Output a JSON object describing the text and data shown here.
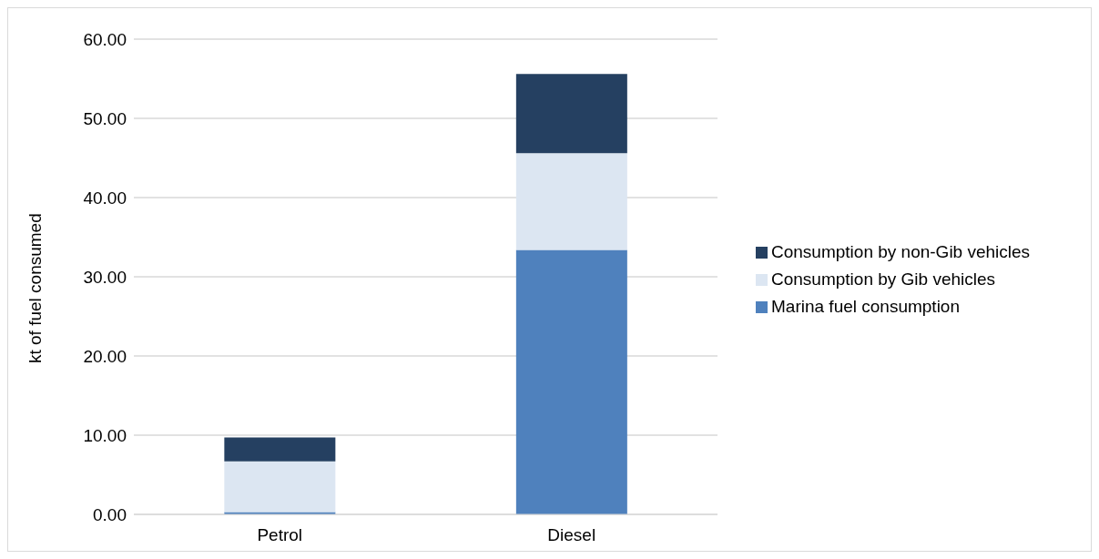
{
  "chart_data": {
    "type": "bar",
    "stacked": true,
    "ylabel": "kt of fuel consumed",
    "categories": [
      "Petrol",
      "Diesel"
    ],
    "series": [
      {
        "name": "Marina fuel consumption",
        "color": "#4f81bd",
        "values": [
          0.3,
          33.4
        ]
      },
      {
        "name": "Consumption by Gib vehicles",
        "color": "#dce6f2",
        "values": [
          6.4,
          12.2
        ]
      },
      {
        "name": "Consumption by non-Gib vehicles",
        "color": "#254061",
        "values": [
          3.0,
          10.0
        ]
      }
    ],
    "ylim": [
      0,
      60
    ],
    "yticks": [
      {
        "value": 0,
        "label": "0.00"
      },
      {
        "value": 10,
        "label": "10.00"
      },
      {
        "value": 20,
        "label": "20.00"
      },
      {
        "value": 30,
        "label": "30.00"
      },
      {
        "value": 40,
        "label": "40.00"
      },
      {
        "value": 50,
        "label": "50.00"
      },
      {
        "value": 60,
        "label": "60.00"
      }
    ],
    "grid": "y",
    "legend": "right"
  }
}
